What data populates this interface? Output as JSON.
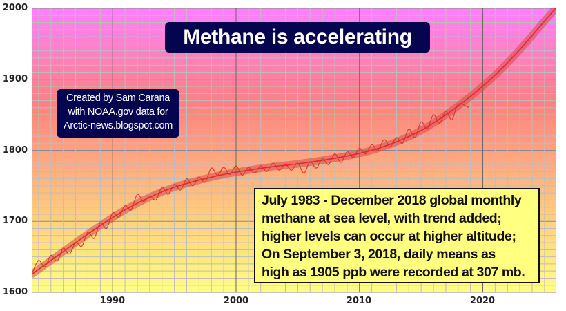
{
  "chart_data": {
    "type": "line",
    "title": "Methane is accelerating",
    "xlabel": "",
    "ylabel": "",
    "xlim": [
      1983.5,
      2025.9
    ],
    "ylim": [
      1600,
      2000
    ],
    "x_ticks": [
      1990,
      2000,
      2010,
      2020
    ],
    "x_tick_labels": [
      "1990",
      "2000",
      "2010",
      "2020"
    ],
    "y_ticks": [
      1600,
      1700,
      1800,
      1900,
      2000
    ],
    "y_tick_labels": [
      "1600",
      "1700",
      "1800",
      "1900",
      "2000"
    ],
    "grid": true,
    "grid_minor_x_step": 1,
    "grid_minor_y_step": 10,
    "legend": null,
    "series": [
      {
        "name": "Global monthly methane (NOAA, sea level)",
        "color": "#d83a2a",
        "x": [
          1983.5,
          1984.0,
          1984.5,
          1985.0,
          1985.5,
          1986.0,
          1986.5,
          1987.0,
          1987.5,
          1988.0,
          1988.5,
          1989.0,
          1989.5,
          1990.0,
          1990.5,
          1991.0,
          1991.5,
          1992.0,
          1992.5,
          1993.0,
          1993.5,
          1994.0,
          1994.5,
          1995.0,
          1995.5,
          1996.0,
          1996.5,
          1997.0,
          1997.5,
          1998.0,
          1998.5,
          1999.0,
          1999.5,
          2000.0,
          2000.5,
          2001.0,
          2001.5,
          2002.0,
          2002.5,
          2003.0,
          2003.5,
          2004.0,
          2004.5,
          2005.0,
          2005.5,
          2006.0,
          2006.5,
          2007.0,
          2007.5,
          2008.0,
          2008.5,
          2009.0,
          2009.5,
          2010.0,
          2010.5,
          2011.0,
          2011.5,
          2012.0,
          2012.5,
          2013.0,
          2013.5,
          2014.0,
          2014.5,
          2015.0,
          2015.5,
          2016.0,
          2016.5,
          2017.0,
          2017.5,
          2018.0,
          2018.9
        ],
        "values": [
          1628,
          1645,
          1636,
          1652,
          1644,
          1662,
          1654,
          1670,
          1665,
          1685,
          1676,
          1698,
          1690,
          1712,
          1706,
          1722,
          1716,
          1738,
          1728,
          1736,
          1730,
          1748,
          1738,
          1752,
          1744,
          1760,
          1750,
          1762,
          1755,
          1775,
          1765,
          1776,
          1766,
          1778,
          1765,
          1776,
          1768,
          1778,
          1770,
          1782,
          1772,
          1780,
          1772,
          1782,
          1768,
          1784,
          1775,
          1788,
          1780,
          1795,
          1783,
          1798,
          1790,
          1803,
          1795,
          1808,
          1800,
          1815,
          1805,
          1818,
          1810,
          1830,
          1818,
          1840,
          1830,
          1850,
          1838,
          1855,
          1843,
          1865,
          1860
        ]
      },
      {
        "name": "Trend",
        "color": "#e8262a",
        "band_color": "#e0605a",
        "x": [
          1983.5,
          1985,
          1987,
          1989,
          1991,
          1993,
          1995,
          1997,
          1999,
          2001,
          2003,
          2005,
          2007,
          2009,
          2011,
          2013,
          2015,
          2017,
          2019,
          2021,
          2023,
          2025,
          2025.9
        ],
        "values": [
          1626,
          1645,
          1670,
          1694,
          1716,
          1734,
          1748,
          1758,
          1766,
          1772,
          1777,
          1781,
          1786,
          1792,
          1800,
          1812,
          1828,
          1850,
          1876,
          1906,
          1942,
          1982,
          2000
        ]
      }
    ],
    "background_gradient": [
      "#ff80ff",
      "#ff8080",
      "#ffc080",
      "#ffff80"
    ]
  },
  "title_box": {
    "text": "Methane is accelerating"
  },
  "credit_box": {
    "lines": [
      "Created by Sam Carana",
      "with NOAA.gov data for",
      "Arctic-news.blogspot.com"
    ]
  },
  "note_box": {
    "lines": [
      "July 1983 - December 2018 global monthly",
      "methane at sea level, with trend added;",
      "higher levels can occur at higher altitude;",
      "On September 3, 2018, daily means as",
      "high as 1905 ppb were recorded at 307 mb."
    ]
  }
}
